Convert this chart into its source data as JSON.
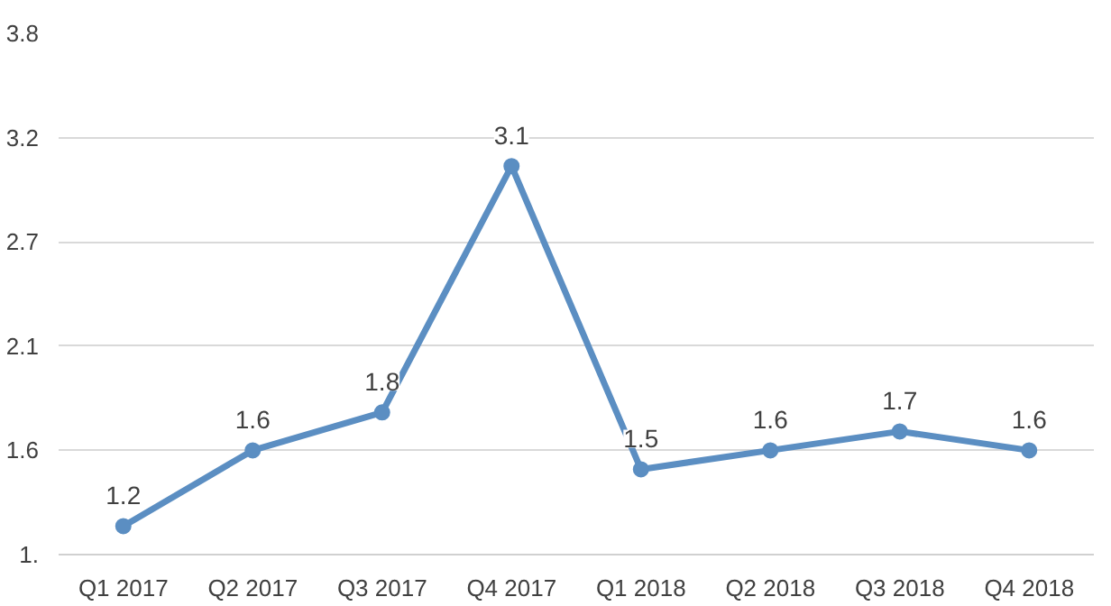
{
  "chart_data": {
    "type": "line",
    "categories": [
      "Q1 2017",
      "Q2 2017",
      "Q3 2017",
      "Q4 2017",
      "Q1 2018",
      "Q2 2018",
      "Q3 2018",
      "Q4 2018"
    ],
    "series": [
      {
        "color": "#5b8ec2",
        "values": [
          1.2,
          1.6,
          1.8,
          3.1,
          1.5,
          1.6,
          1.7,
          1.6
        ]
      }
    ],
    "ylim": [
      1.05,
      3.8
    ],
    "yticks": [
      {
        "value": 1.05,
        "label": "1."
      },
      {
        "value": 1.6,
        "label": "1.6"
      },
      {
        "value": 2.15,
        "label": "2.1"
      },
      {
        "value": 2.7,
        "label": "2.7"
      },
      {
        "value": 3.25,
        "label": "3.2"
      },
      {
        "value": 3.8,
        "label": "3.8"
      }
    ],
    "grid": "y",
    "marker": "circle",
    "data_labels": true
  }
}
